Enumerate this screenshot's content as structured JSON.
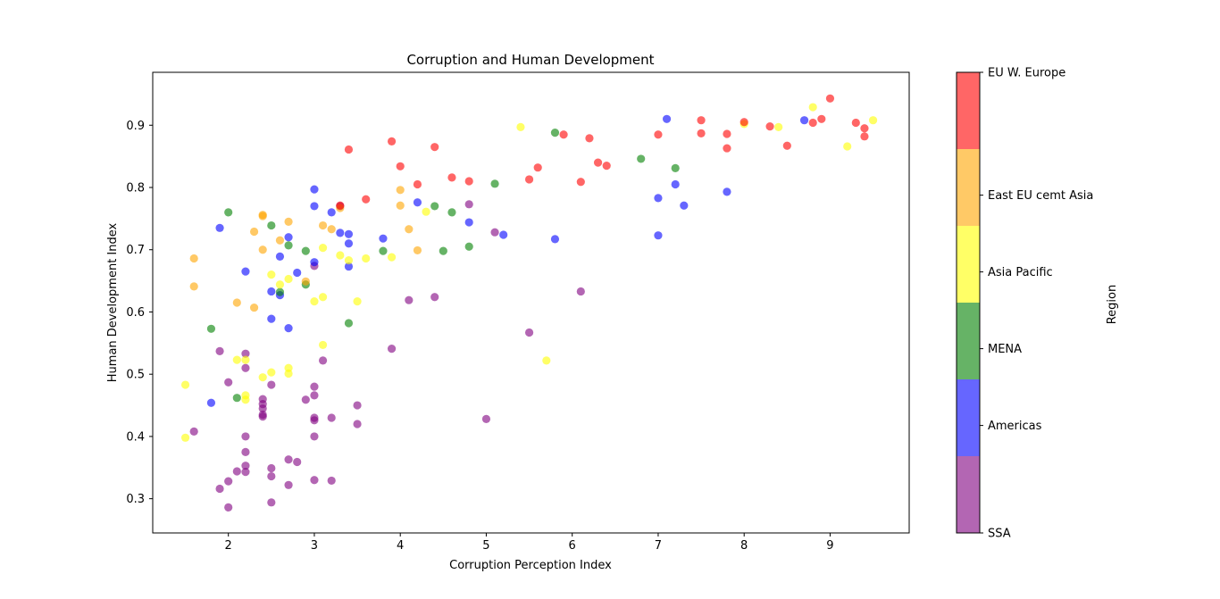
{
  "chart_data": {
    "type": "scatter",
    "title": "Corruption and Human Development",
    "xlabel": "Corruption Perception Index",
    "ylabel": "Human Development Index",
    "xlim": [
      1.12,
      9.92
    ],
    "ylim": [
      0.245,
      0.985
    ],
    "xticks": [
      2,
      3,
      4,
      5,
      6,
      7,
      8,
      9
    ],
    "yticks": [
      0.3,
      0.4,
      0.5,
      0.6,
      0.7,
      0.8,
      0.9
    ],
    "marker_alpha": 0.6,
    "colorbar": {
      "label": "Region",
      "categories": [
        "SSA",
        "Americas",
        "MENA",
        "Asia Pacific",
        "East EU cemt Asia",
        "EU W. Europe"
      ],
      "colors": [
        "#800080",
        "#0000ff",
        "#008000",
        "#ffff00",
        "#ffa500",
        "#ff0000"
      ]
    },
    "series": [
      {
        "region": "SSA",
        "color": "#800080",
        "points": [
          [
            1.6,
            0.408
          ],
          [
            1.9,
            0.316
          ],
          [
            2.0,
            0.286
          ],
          [
            2.0,
            0.328
          ],
          [
            2.1,
            0.344
          ],
          [
            2.2,
            0.343
          ],
          [
            2.2,
            0.353
          ],
          [
            2.2,
            0.375
          ],
          [
            2.2,
            0.4
          ],
          [
            2.5,
            0.294
          ],
          [
            2.5,
            0.336
          ],
          [
            2.5,
            0.349
          ],
          [
            2.7,
            0.322
          ],
          [
            2.7,
            0.363
          ],
          [
            2.8,
            0.359
          ],
          [
            3.0,
            0.33
          ],
          [
            3.2,
            0.329
          ],
          [
            3.0,
            0.4
          ],
          [
            2.4,
            0.432
          ],
          [
            2.4,
            0.435
          ],
          [
            2.4,
            0.445
          ],
          [
            2.4,
            0.452
          ],
          [
            2.4,
            0.46
          ],
          [
            2.5,
            0.483
          ],
          [
            2.9,
            0.459
          ],
          [
            3.0,
            0.426
          ],
          [
            3.0,
            0.43
          ],
          [
            3.0,
            0.466
          ],
          [
            3.0,
            0.48
          ],
          [
            3.2,
            0.43
          ],
          [
            3.5,
            0.42
          ],
          [
            3.5,
            0.45
          ],
          [
            1.9,
            0.537
          ],
          [
            2.0,
            0.487
          ],
          [
            2.2,
            0.51
          ],
          [
            2.2,
            0.533
          ],
          [
            3.1,
            0.522
          ],
          [
            3.9,
            0.541
          ],
          [
            5.0,
            0.428
          ],
          [
            5.5,
            0.567
          ],
          [
            4.1,
            0.619
          ],
          [
            4.4,
            0.624
          ],
          [
            6.1,
            0.633
          ],
          [
            3.0,
            0.674
          ],
          [
            3.3,
            0.77
          ],
          [
            4.8,
            0.773
          ],
          [
            5.1,
            0.728
          ]
        ]
      },
      {
        "region": "Americas",
        "color": "#0000ff",
        "points": [
          [
            1.8,
            0.454
          ],
          [
            1.9,
            0.735
          ],
          [
            2.2,
            0.665
          ],
          [
            2.5,
            0.589
          ],
          [
            2.5,
            0.633
          ],
          [
            2.6,
            0.627
          ],
          [
            2.6,
            0.689
          ],
          [
            2.7,
            0.574
          ],
          [
            2.7,
            0.72
          ],
          [
            2.8,
            0.663
          ],
          [
            3.0,
            0.68
          ],
          [
            3.0,
            0.77
          ],
          [
            3.0,
            0.797
          ],
          [
            3.2,
            0.76
          ],
          [
            3.3,
            0.727
          ],
          [
            3.4,
            0.673
          ],
          [
            3.4,
            0.71
          ],
          [
            3.4,
            0.725
          ],
          [
            3.8,
            0.718
          ],
          [
            4.2,
            0.776
          ],
          [
            4.8,
            0.744
          ],
          [
            5.2,
            0.724
          ],
          [
            5.8,
            0.717
          ],
          [
            7.0,
            0.723
          ],
          [
            7.0,
            0.783
          ],
          [
            7.1,
            0.91
          ],
          [
            7.2,
            0.805
          ],
          [
            7.3,
            0.771
          ],
          [
            7.8,
            0.793
          ],
          [
            8.7,
            0.908
          ]
        ]
      },
      {
        "region": "MENA",
        "color": "#008000",
        "points": [
          [
            1.8,
            0.573
          ],
          [
            2.0,
            0.76
          ],
          [
            2.1,
            0.462
          ],
          [
            2.5,
            0.739
          ],
          [
            2.6,
            0.632
          ],
          [
            2.7,
            0.707
          ],
          [
            2.9,
            0.644
          ],
          [
            2.9,
            0.698
          ],
          [
            3.4,
            0.582
          ],
          [
            3.8,
            0.698
          ],
          [
            4.4,
            0.77
          ],
          [
            4.5,
            0.698
          ],
          [
            4.6,
            0.76
          ],
          [
            4.8,
            0.705
          ],
          [
            5.1,
            0.806
          ],
          [
            5.8,
            0.888
          ],
          [
            6.8,
            0.846
          ],
          [
            7.2,
            0.831
          ]
        ]
      },
      {
        "region": "Asia Pacific",
        "color": "#ffff00",
        "points": [
          [
            1.5,
            0.398
          ],
          [
            1.5,
            0.483
          ],
          [
            2.1,
            0.523
          ],
          [
            2.2,
            0.459
          ],
          [
            2.2,
            0.466
          ],
          [
            2.2,
            0.523
          ],
          [
            2.4,
            0.495
          ],
          [
            2.5,
            0.503
          ],
          [
            2.5,
            0.66
          ],
          [
            2.6,
            0.644
          ],
          [
            2.7,
            0.501
          ],
          [
            2.7,
            0.51
          ],
          [
            2.7,
            0.653
          ],
          [
            3.0,
            0.617
          ],
          [
            3.1,
            0.547
          ],
          [
            3.1,
            0.624
          ],
          [
            3.1,
            0.703
          ],
          [
            3.3,
            0.691
          ],
          [
            3.4,
            0.683
          ],
          [
            3.5,
            0.617
          ],
          [
            3.6,
            0.686
          ],
          [
            3.9,
            0.688
          ],
          [
            4.3,
            0.761
          ],
          [
            5.4,
            0.897
          ],
          [
            5.7,
            0.522
          ],
          [
            8.0,
            0.902
          ],
          [
            8.4,
            0.897
          ],
          [
            8.8,
            0.929
          ],
          [
            9.2,
            0.866
          ],
          [
            9.5,
            0.908
          ]
        ]
      },
      {
        "region": "East EU cemt Asia",
        "color": "#ffa500",
        "points": [
          [
            1.6,
            0.641
          ],
          [
            1.6,
            0.686
          ],
          [
            2.1,
            0.615
          ],
          [
            2.3,
            0.607
          ],
          [
            2.3,
            0.729
          ],
          [
            2.4,
            0.7
          ],
          [
            2.4,
            0.754
          ],
          [
            2.4,
            0.756
          ],
          [
            2.6,
            0.715
          ],
          [
            2.7,
            0.745
          ],
          [
            2.9,
            0.649
          ],
          [
            3.1,
            0.739
          ],
          [
            3.2,
            0.733
          ],
          [
            3.3,
            0.767
          ],
          [
            4.0,
            0.771
          ],
          [
            4.0,
            0.796
          ],
          [
            4.1,
            0.733
          ],
          [
            4.2,
            0.699
          ]
        ]
      },
      {
        "region": "EU W. Europe",
        "color": "#ff0000",
        "points": [
          [
            3.3,
            0.771
          ],
          [
            3.4,
            0.861
          ],
          [
            3.6,
            0.781
          ],
          [
            3.9,
            0.874
          ],
          [
            4.0,
            0.834
          ],
          [
            4.2,
            0.805
          ],
          [
            4.4,
            0.865
          ],
          [
            4.6,
            0.816
          ],
          [
            4.8,
            0.81
          ],
          [
            5.5,
            0.813
          ],
          [
            5.6,
            0.832
          ],
          [
            5.9,
            0.885
          ],
          [
            6.1,
            0.809
          ],
          [
            6.2,
            0.879
          ],
          [
            6.3,
            0.84
          ],
          [
            6.4,
            0.835
          ],
          [
            7.0,
            0.885
          ],
          [
            7.5,
            0.887
          ],
          [
            7.5,
            0.908
          ],
          [
            7.8,
            0.863
          ],
          [
            7.8,
            0.886
          ],
          [
            8.0,
            0.905
          ],
          [
            8.3,
            0.898
          ],
          [
            8.5,
            0.867
          ],
          [
            8.8,
            0.904
          ],
          [
            8.9,
            0.91
          ],
          [
            9.0,
            0.943
          ],
          [
            9.3,
            0.904
          ],
          [
            9.4,
            0.882
          ],
          [
            9.4,
            0.895
          ]
        ]
      }
    ]
  }
}
